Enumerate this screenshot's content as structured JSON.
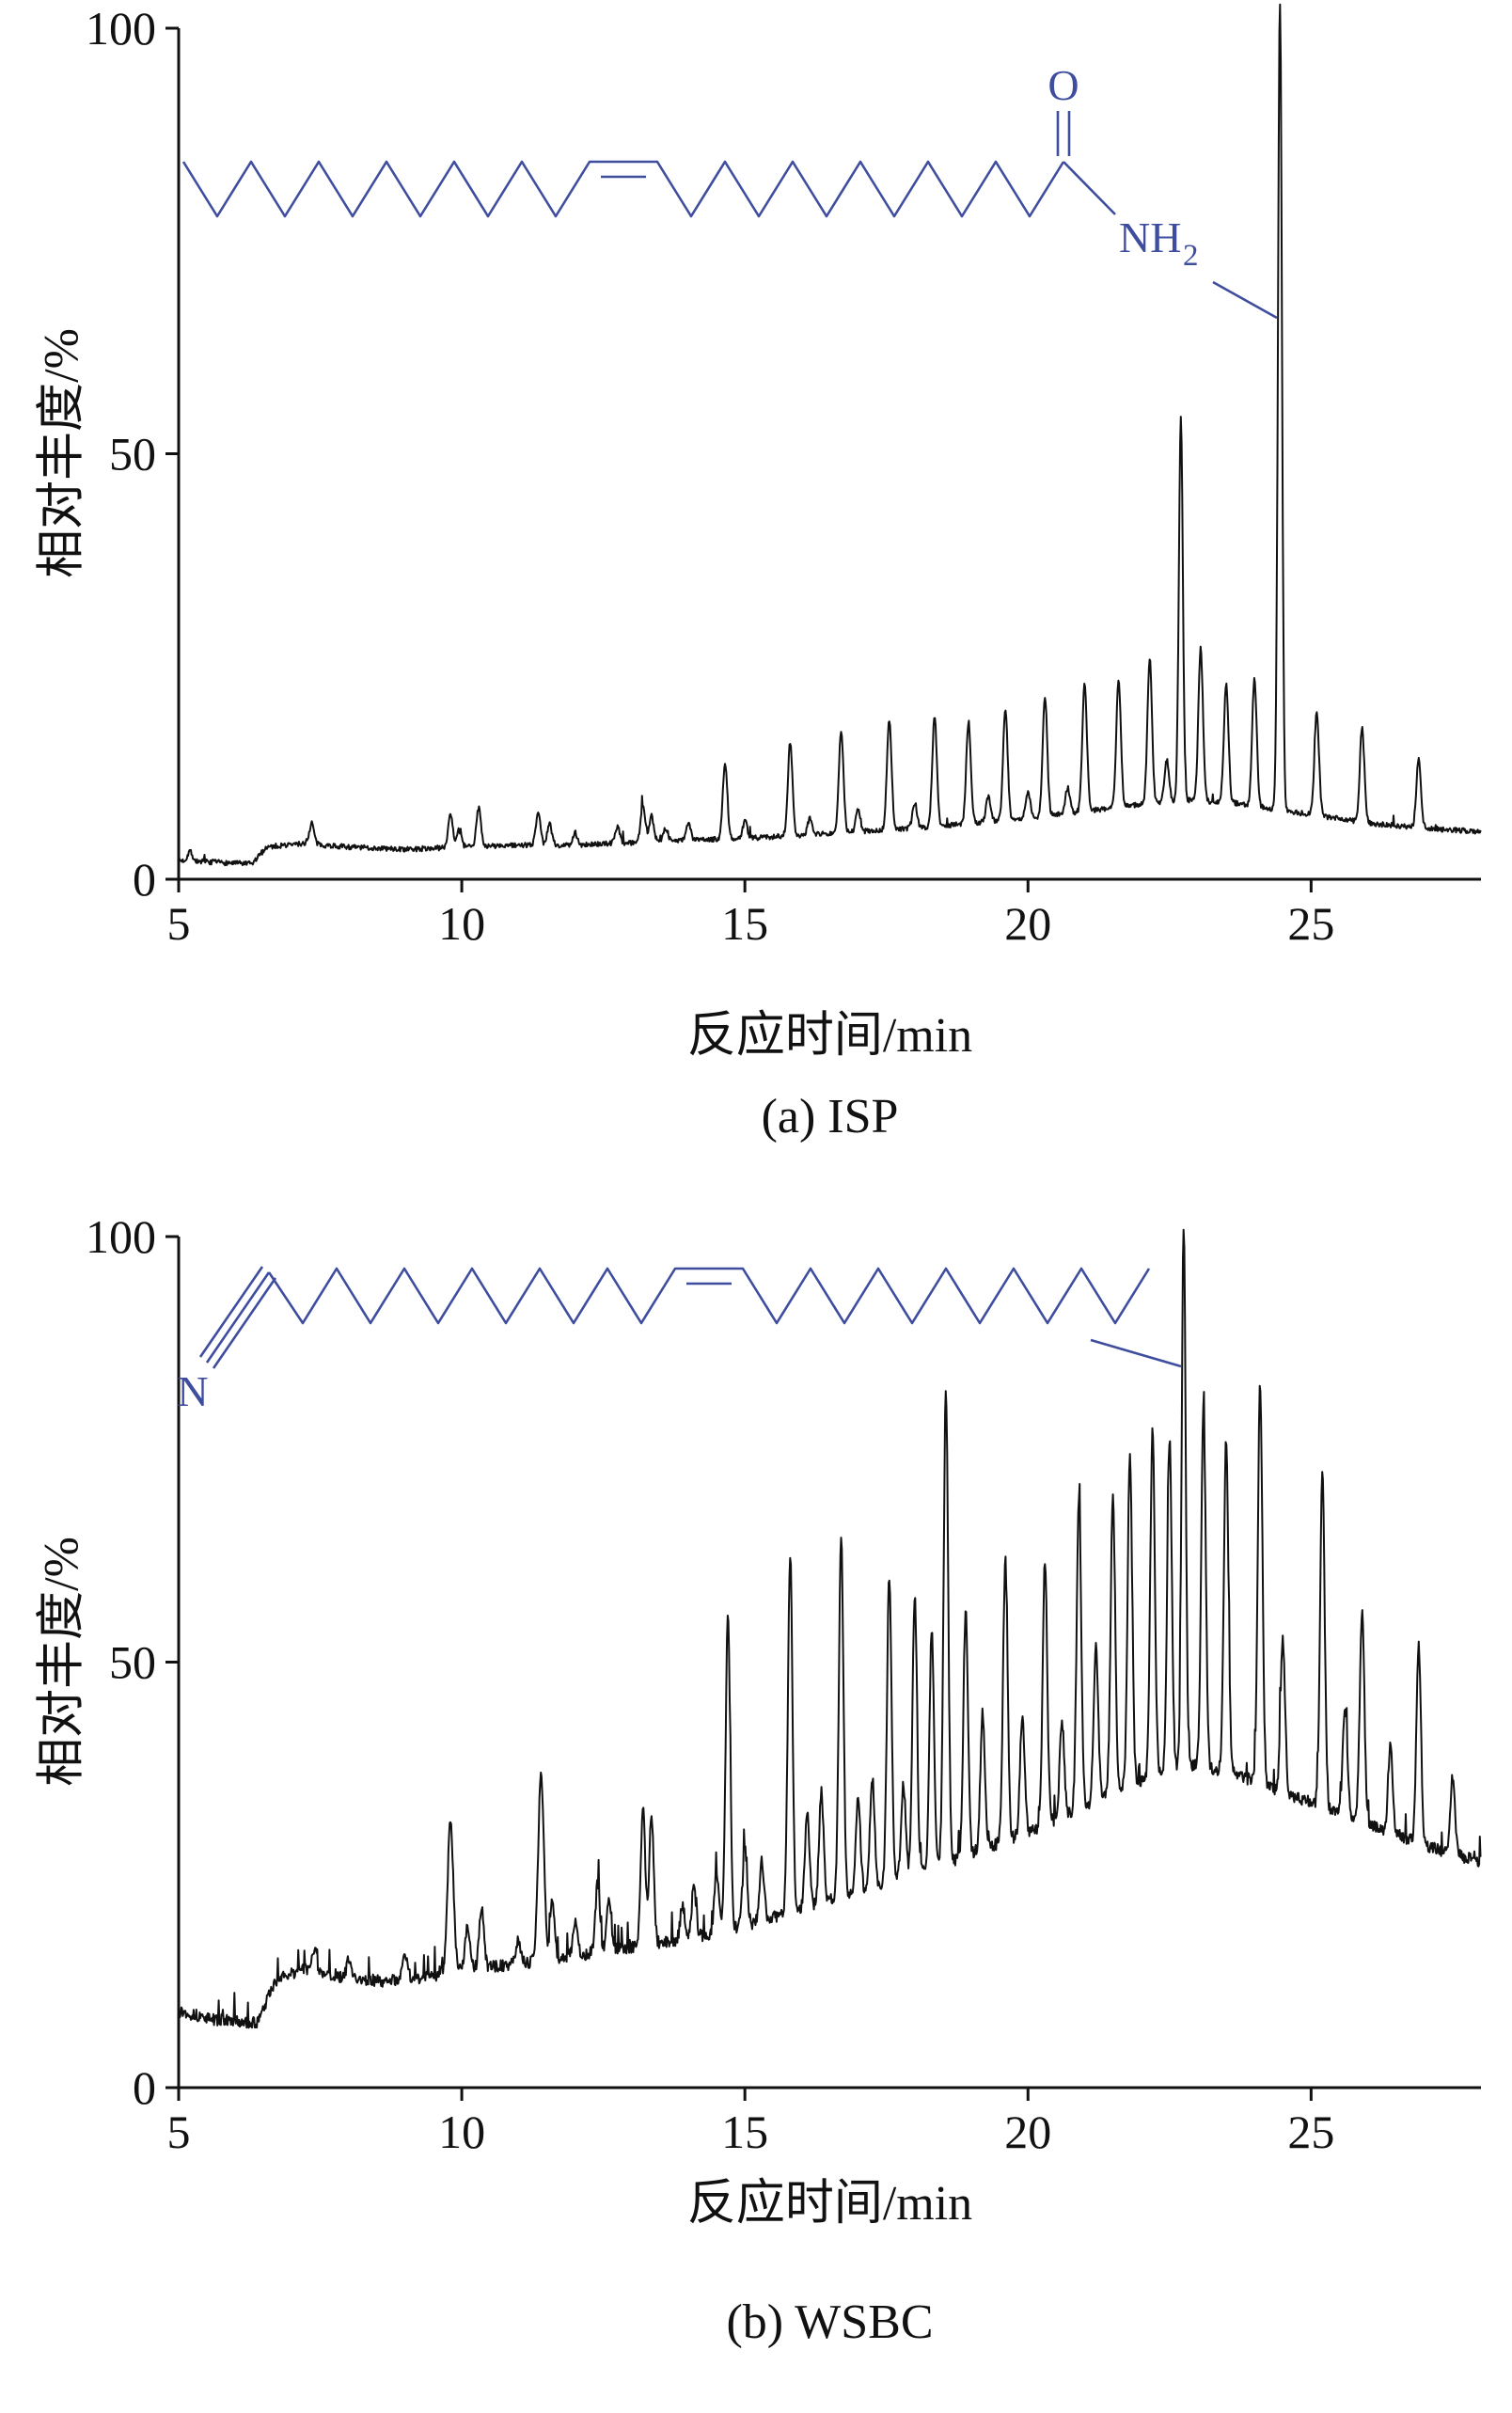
{
  "colors": {
    "trace": "#111111",
    "structure": "#3f4d9e",
    "background": "#ffffff"
  },
  "chart_data": [
    {
      "type": "line",
      "title": "(a) ISP",
      "xlabel": "反应时间/min",
      "ylabel": "相对丰度/%",
      "xlim": [
        5,
        28
      ],
      "ylim": [
        0,
        100
      ],
      "xticks": [
        5,
        10,
        15,
        20,
        25
      ],
      "yticks": [
        0,
        50,
        100
      ],
      "grid": false,
      "legend": "none",
      "line_color": "#111111",
      "noise": 0.6,
      "spike_p": 0.008,
      "spike_a": 1.2,
      "cap": 102.8,
      "structure": {
        "o_label": "O",
        "nh_label": "NH",
        "nh_sub": "2"
      },
      "baseline": [
        [
          5,
          2.2
        ],
        [
          6.3,
          1.8
        ],
        [
          6.55,
          3.8
        ],
        [
          7.2,
          4.2
        ],
        [
          8,
          3.8
        ],
        [
          9,
          3.5
        ],
        [
          10,
          3.8
        ],
        [
          11,
          4
        ],
        [
          12,
          4
        ],
        [
          13,
          4.3
        ],
        [
          14,
          4.6
        ],
        [
          15,
          4.8
        ],
        [
          16,
          5.2
        ],
        [
          17,
          5.6
        ],
        [
          18,
          6
        ],
        [
          19,
          6.6
        ],
        [
          20,
          7.2
        ],
        [
          21,
          8
        ],
        [
          22,
          8.8
        ],
        [
          22.8,
          9.3
        ],
        [
          23.6,
          9
        ],
        [
          24.4,
          8.2
        ],
        [
          25.2,
          7.4
        ],
        [
          26,
          6.6
        ],
        [
          27,
          6
        ],
        [
          28,
          5.6
        ]
      ],
      "peaks": [
        [
          5.2,
          1.2
        ],
        [
          7.35,
          2.5
        ],
        [
          9.8,
          4
        ],
        [
          9.95,
          2
        ],
        [
          10.3,
          4.5
        ],
        [
          11.35,
          4
        ],
        [
          11.55,
          2.5
        ],
        [
          12.0,
          1.5
        ],
        [
          12.75,
          2
        ],
        [
          13.2,
          4.5
        ],
        [
          13.35,
          3
        ],
        [
          13.6,
          1.5
        ],
        [
          14.0,
          2
        ],
        [
          14.65,
          9
        ],
        [
          15.0,
          2
        ],
        [
          15.8,
          11
        ],
        [
          16.15,
          2
        ],
        [
          16.7,
          12
        ],
        [
          17.0,
          2.5
        ],
        [
          17.55,
          13
        ],
        [
          18.0,
          3
        ],
        [
          18.35,
          13
        ],
        [
          18.95,
          12
        ],
        [
          19.3,
          3
        ],
        [
          19.6,
          13
        ],
        [
          20.0,
          3
        ],
        [
          20.3,
          14
        ],
        [
          20.7,
          3
        ],
        [
          21.0,
          15
        ],
        [
          21.6,
          15
        ],
        [
          22.15,
          17
        ],
        [
          22.45,
          5
        ],
        [
          22.7,
          45,
          0.035
        ],
        [
          23.05,
          18
        ],
        [
          23.5,
          14
        ],
        [
          24.0,
          15
        ],
        [
          24.45,
          95,
          0.035
        ],
        [
          25.1,
          12
        ],
        [
          25.9,
          11
        ],
        [
          26.9,
          8
        ]
      ]
    },
    {
      "type": "line",
      "title": "(b) WSBC",
      "xlabel": "反应时间/min",
      "ylabel": "相对丰度/%",
      "xlim": [
        5,
        28
      ],
      "ylim": [
        0,
        100
      ],
      "xticks": [
        5,
        10,
        15,
        20,
        25
      ],
      "yticks": [
        0,
        50,
        100
      ],
      "grid": false,
      "legend": "none",
      "line_color": "#111111",
      "noise": 1.4,
      "spike_p": 0.05,
      "spike_a": 3.5,
      "cap": 100.8,
      "structure": {
        "n_label": "N"
      },
      "baseline": [
        [
          5,
          9
        ],
        [
          5.6,
          8
        ],
        [
          6.4,
          7.6
        ],
        [
          6.7,
          12.5
        ],
        [
          7.2,
          14
        ],
        [
          7.8,
          13
        ],
        [
          8.6,
          12.5
        ],
        [
          9.4,
          13
        ],
        [
          10,
          14
        ],
        [
          11,
          14.5
        ],
        [
          12,
          15.5
        ],
        [
          13,
          16.5
        ],
        [
          14,
          17.5
        ],
        [
          15,
          19
        ],
        [
          16,
          21
        ],
        [
          17,
          23
        ],
        [
          18,
          25
        ],
        [
          19,
          27.5
        ],
        [
          20,
          30
        ],
        [
          21,
          33
        ],
        [
          22,
          36
        ],
        [
          22.8,
          38
        ],
        [
          23.6,
          37
        ],
        [
          24.4,
          35
        ],
        [
          25.2,
          33
        ],
        [
          26,
          31
        ],
        [
          27,
          28.5
        ],
        [
          28,
          26.5
        ]
      ],
      "peaks": [
        [
          7.4,
          2.5
        ],
        [
          8.0,
          2
        ],
        [
          9.0,
          3
        ],
        [
          9.8,
          18,
          0.05
        ],
        [
          10.1,
          5
        ],
        [
          10.35,
          7
        ],
        [
          11.0,
          3
        ],
        [
          11.4,
          22,
          0.05
        ],
        [
          11.6,
          7
        ],
        [
          12.0,
          4
        ],
        [
          12.4,
          8
        ],
        [
          12.6,
          6
        ],
        [
          13.2,
          16
        ],
        [
          13.35,
          15
        ],
        [
          13.9,
          4
        ],
        [
          14.1,
          6
        ],
        [
          14.5,
          7
        ],
        [
          14.7,
          37
        ],
        [
          15.0,
          9
        ],
        [
          15.3,
          7
        ],
        [
          15.8,
          42
        ],
        [
          16.1,
          11
        ],
        [
          16.35,
          13
        ],
        [
          16.7,
          42
        ],
        [
          17.0,
          11
        ],
        [
          17.25,
          13
        ],
        [
          17.55,
          36
        ],
        [
          17.8,
          11
        ],
        [
          18.0,
          33
        ],
        [
          18.3,
          28
        ],
        [
          18.55,
          56
        ],
        [
          18.9,
          29
        ],
        [
          19.2,
          16
        ],
        [
          19.6,
          33
        ],
        [
          19.9,
          14
        ],
        [
          20.3,
          31
        ],
        [
          20.6,
          11
        ],
        [
          20.9,
          37
        ],
        [
          21.2,
          18
        ],
        [
          21.5,
          35
        ],
        [
          21.8,
          39
        ],
        [
          22.2,
          41
        ],
        [
          22.5,
          39
        ],
        [
          22.75,
          64,
          0.035
        ],
        [
          23.1,
          42
        ],
        [
          23.5,
          39
        ],
        [
          24.1,
          47
        ],
        [
          24.5,
          18
        ],
        [
          25.2,
          39
        ],
        [
          25.6,
          13
        ],
        [
          25.9,
          25
        ],
        [
          26.4,
          10
        ],
        [
          26.9,
          23
        ],
        [
          27.5,
          9
        ]
      ]
    }
  ]
}
